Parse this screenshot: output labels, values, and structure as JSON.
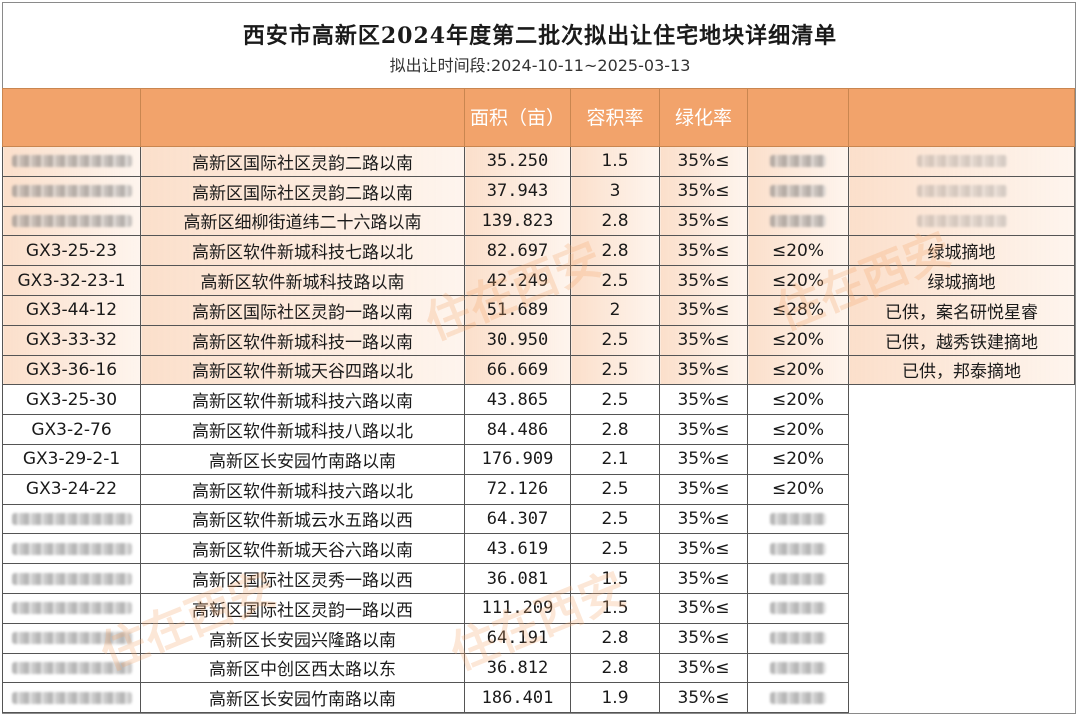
{
  "header": {
    "title": "西安市高新区2024年度第二批次拟出让住宅地块详细清单",
    "subtitle": "拟出让时间段:2024-10-11~2025-03-13"
  },
  "columns": [
    "",
    "",
    "面积（亩）",
    "容积率",
    "绿化率",
    "",
    ""
  ],
  "rows": [
    {
      "code": "",
      "location": "高新区国际社区灵韵二路以南",
      "area": "35.250",
      "far": "1.5",
      "green": "35%≤",
      "density": "",
      "note": ""
    },
    {
      "code": "",
      "location": "高新区国际社区灵韵二路以南",
      "area": "37.943",
      "far": "3",
      "green": "35%≤",
      "density": "",
      "note": ""
    },
    {
      "code": "",
      "location": "高新区细柳街道纬二十六路以南",
      "area": "139.823",
      "far": "2.8",
      "green": "35%≤",
      "density": "",
      "note": ""
    },
    {
      "code": "GX3-25-23",
      "location": "高新区软件新城科技七路以北",
      "area": "82.697",
      "far": "2.8",
      "green": "35%≤",
      "density": "≤20%",
      "note": "绿城摘地"
    },
    {
      "code": "GX3-32-23-1",
      "location": "高新区软件新城科技路以南",
      "area": "42.249",
      "far": "2.5",
      "green": "35%≤",
      "density": "≤20%",
      "note": "绿城摘地"
    },
    {
      "code": "GX3-44-12",
      "location": "高新区国际社区灵韵一路以南",
      "area": "51.689",
      "far": "2",
      "green": "35%≤",
      "density": "≤28%",
      "note": "已供，案名研悦星睿"
    },
    {
      "code": "GX3-33-32",
      "location": "高新区软件新城科技一路以南",
      "area": "30.950",
      "far": "2.5",
      "green": "35%≤",
      "density": "≤20%",
      "note": "已供，越秀铁建摘地"
    },
    {
      "code": "GX3-36-16",
      "location": "高新区软件新城天谷四路以北",
      "area": "66.669",
      "far": "2.5",
      "green": "35%≤",
      "density": "≤20%",
      "note": "已供，邦泰摘地"
    },
    {
      "code": "GX3-25-30",
      "location": "高新区软件新城科技六路以南",
      "area": "43.865",
      "far": "2.5",
      "green": "35%≤",
      "density": "≤20%",
      "note": ""
    },
    {
      "code": "GX3-2-76",
      "location": "高新区软件新城科技八路以北",
      "area": "84.486",
      "far": "2.8",
      "green": "35%≤",
      "density": "≤20%",
      "note": ""
    },
    {
      "code": "GX3-29-2-1",
      "location": "高新区长安园竹南路以南",
      "area": "176.909",
      "far": "2.1",
      "green": "35%≤",
      "density": "≤20%",
      "note": ""
    },
    {
      "code": "GX3-24-22",
      "location": "高新区软件新城科技六路以北",
      "area": "72.126",
      "far": "2.5",
      "green": "35%≤",
      "density": "≤20%",
      "note": ""
    },
    {
      "code": "",
      "location": "高新区软件新城云水五路以西",
      "area": "64.307",
      "far": "2.5",
      "green": "35%≤",
      "density": "",
      "note": ""
    },
    {
      "code": "",
      "location": "高新区软件新城天谷六路以南",
      "area": "43.619",
      "far": "2.5",
      "green": "35%≤",
      "density": "",
      "note": ""
    },
    {
      "code": "",
      "location": "高新区国际社区灵秀一路以西",
      "area": "36.081",
      "far": "1.5",
      "green": "35%≤",
      "density": "",
      "note": ""
    },
    {
      "code": "",
      "location": "高新区国际社区灵韵一路以西",
      "area": "111.209",
      "far": "1.5",
      "green": "35%≤",
      "density": "",
      "note": ""
    },
    {
      "code": "",
      "location": "高新区长安园兴隆路以南",
      "area": "64.191",
      "far": "2.8",
      "green": "35%≤",
      "density": "",
      "note": ""
    },
    {
      "code": "",
      "location": "高新区中创区西太路以东",
      "area": "36.812",
      "far": "2.8",
      "green": "35%≤",
      "density": "",
      "note": ""
    },
    {
      "code": "",
      "location": "高新区长安园竹南路以南",
      "area": "186.401",
      "far": "1.9",
      "green": "35%≤",
      "density": "",
      "note": ""
    }
  ],
  "colors": {
    "header": "#f2a36b",
    "tint": "#f8c5a0",
    "watermark": "#f5aa6e"
  },
  "watermark_text": "住在西安"
}
